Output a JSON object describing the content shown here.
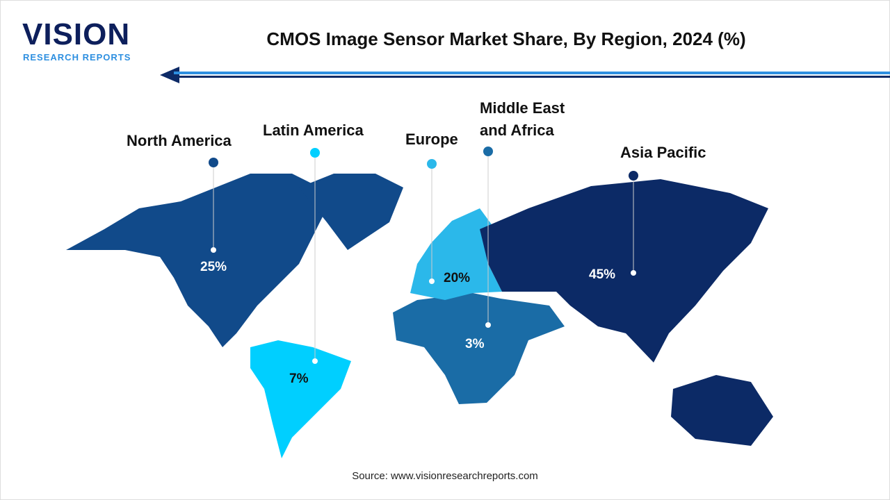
{
  "logo": {
    "main": "VISION",
    "sub": "RESEARCH REPORTS"
  },
  "title": "CMOS Image Sensor Market Share, By Region, 2024 (%)",
  "source": "Source: www.visionresearchreports.com",
  "chart_data": {
    "type": "map",
    "title": "CMOS Image Sensor Market Share, By Region, 2024 (%)",
    "regions": [
      {
        "name": "North America",
        "value": 25,
        "label": "25%",
        "color": "#114a8a"
      },
      {
        "name": "Latin America",
        "value": 7,
        "label": "7%",
        "color": "#00cfff"
      },
      {
        "name": "Europe",
        "value": 20,
        "label": "20%",
        "color": "#2bb8ea"
      },
      {
        "name": "Middle East and Africa",
        "value": 3,
        "label": "3%",
        "color": "#1a6ca6"
      },
      {
        "name": "Asia Pacific",
        "value": 45,
        "label": "45%",
        "color": "#0c2a66"
      }
    ]
  }
}
